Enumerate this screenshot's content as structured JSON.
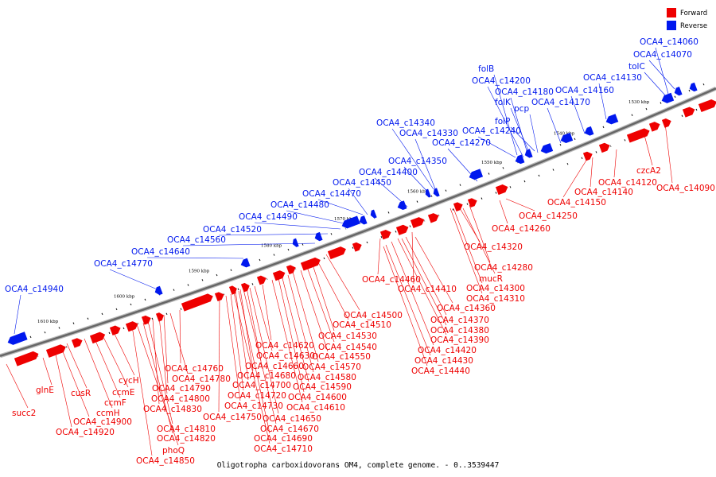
{
  "colors": {
    "forward": "#ee0000",
    "reverse": "#0018ee",
    "axis": "#666666"
  },
  "legend": {
    "forward": "Forward",
    "reverse": "Reverse"
  },
  "caption": "Oligotropha carboxidovorans OM4, complete genome. - 0..3539447",
  "ticks": [
    "1530 kbp",
    "1540 kbp",
    "1550 kbp",
    "1560 kbp",
    "1570 kbp",
    "1580 kbp",
    "1590 kbp",
    "1600 kbp",
    "1610 kbp"
  ],
  "reverse_labels": [
    "OCA4_c14060",
    "OCA4_c14070",
    "tolC",
    "OCA4_c14130",
    "folB",
    "OCA4_c14200",
    "OCA4_c14180",
    "OCA4_c14160",
    "folK",
    "pcp",
    "OCA4_c14170",
    "folP",
    "OCA4_c14340",
    "OCA4_c14240",
    "OCA4_c14330",
    "OCA4_c14270",
    "OCA4_c14350",
    "OCA4_c14400",
    "OCA4_c14450",
    "OCA4_c14470",
    "OCA4_c14480",
    "OCA4_c14490",
    "OCA4_c14520",
    "OCA4_c14560",
    "OCA4_c14640",
    "OCA4_c14770",
    "OCA4_c14940"
  ],
  "forward_labels": [
    "czcA2",
    "OCA4_c14120",
    "OCA4_c14090",
    "OCA4_c14140",
    "OCA4_c14150",
    "OCA4_c14250",
    "OCA4_c14260",
    "OCA4_c14320",
    "OCA4_c14280",
    "mucR",
    "OCA4_c14300",
    "OCA4_c14310",
    "OCA4_c14460",
    "OCA4_c14410",
    "OCA4_c14360",
    "OCA4_c14370",
    "OCA4_c14380",
    "OCA4_c14390",
    "OCA4_c14420",
    "OCA4_c14430",
    "OCA4_c14440",
    "OCA4_c14500",
    "OCA4_c14510",
    "OCA4_c14530",
    "OCA4_c14540",
    "OCA4_c14550",
    "OCA4_c14570",
    "OCA4_c14580",
    "OCA4_c14590",
    "OCA4_c14600",
    "OCA4_c14610",
    "OCA4_c14620",
    "OCA4_c14630",
    "OCA4_c14660",
    "OCA4_c14680",
    "OCA4_c14700",
    "OCA4_c14720",
    "OCA4_c14730",
    "OCA4_c14650",
    "OCA4_c14670",
    "OCA4_c14690",
    "OCA4_c14710",
    "OCA4_c14750",
    "OCA4_c14760",
    "OCA4_c14780",
    "OCA4_c14790",
    "OCA4_c14800",
    "OCA4_c14830",
    "OCA4_c14810",
    "OCA4_c14820",
    "phoQ",
    "OCA4_c14850",
    "cycH",
    "ccmE",
    "ccmF",
    "ccmH",
    "cusR",
    "OCA4_c14900",
    "OCA4_c14920",
    "glnE",
    "succ2"
  ]
}
